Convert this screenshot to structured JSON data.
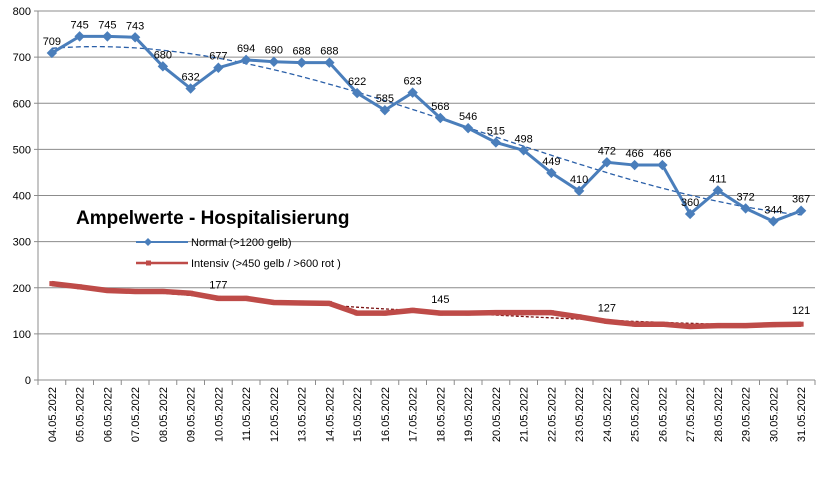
{
  "chart_data": {
    "type": "line",
    "title": "Ampelwerte - Hospitalisierung",
    "xlabel": "",
    "ylabel": "",
    "ylim": [
      0,
      800
    ],
    "yticks": [
      0,
      100,
      200,
      300,
      400,
      500,
      600,
      700,
      800
    ],
    "categories": [
      "04.05.2022",
      "05.05.2022",
      "06.05.2022",
      "07.05.2022",
      "08.05.2022",
      "09.05.2022",
      "10.05.2022",
      "11.05.2022",
      "12.05.2022",
      "13.05.2022",
      "14.05.2022",
      "15.05.2022",
      "16.05.2022",
      "17.05.2022",
      "18.05.2022",
      "19.05.2022",
      "20.05.2022",
      "21.05.2022",
      "22.05.2022",
      "23.05.2022",
      "24.05.2022",
      "25.05.2022",
      "26.05.2022",
      "27.05.2022",
      "28.05.2022",
      "29.05.2022",
      "30.05.2022",
      "31.05.2022"
    ],
    "series": [
      {
        "name": "Normal (>1200 gelb)",
        "color": "#4a7ebb",
        "marker": "diamond",
        "values": [
          709,
          745,
          745,
          743,
          680,
          632,
          677,
          694,
          690,
          688,
          688,
          622,
          585,
          623,
          568,
          546,
          515,
          498,
          449,
          410,
          472,
          466,
          466,
          360,
          411,
          372,
          344,
          367
        ],
        "labels_shown": true,
        "trendline": "dashed"
      },
      {
        "name": "Intensiv (>450 gelb / >600 rot )",
        "color": "#be4b48",
        "marker": "square",
        "values": [
          209,
          202,
          194,
          192,
          192,
          188,
          177,
          177,
          168,
          167,
          166,
          145,
          145,
          151,
          145,
          145,
          146,
          146,
          146,
          137,
          127,
          121,
          121,
          116,
          118,
          118,
          120,
          121
        ],
        "label_indices": [
          6,
          14,
          20,
          27
        ],
        "trendline": "dashed"
      }
    ],
    "legend": "inside-left"
  }
}
